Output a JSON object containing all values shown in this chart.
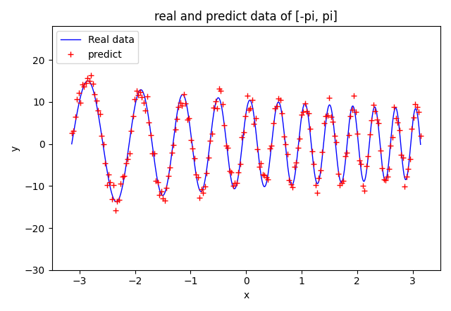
{
  "title": "real and predict data of [-pi, pi]",
  "xlabel": "x",
  "ylabel": "y",
  "line_color": "#0000ff",
  "scatter_color": "#ff0000",
  "scatter_marker": "+",
  "scatter_markersize": 6,
  "legend_labels": [
    "Real data",
    "predict"
  ],
  "xlim": [
    -3.5,
    3.5
  ],
  "ylim": [
    -30,
    28
  ],
  "n_line": 5000,
  "n_scatter": 200,
  "omega": 5.0,
  "amplitude_scale": 2.5,
  "noise_scale": 1.5,
  "figsize": [
    6.4,
    4.42
  ],
  "dpi": 100
}
